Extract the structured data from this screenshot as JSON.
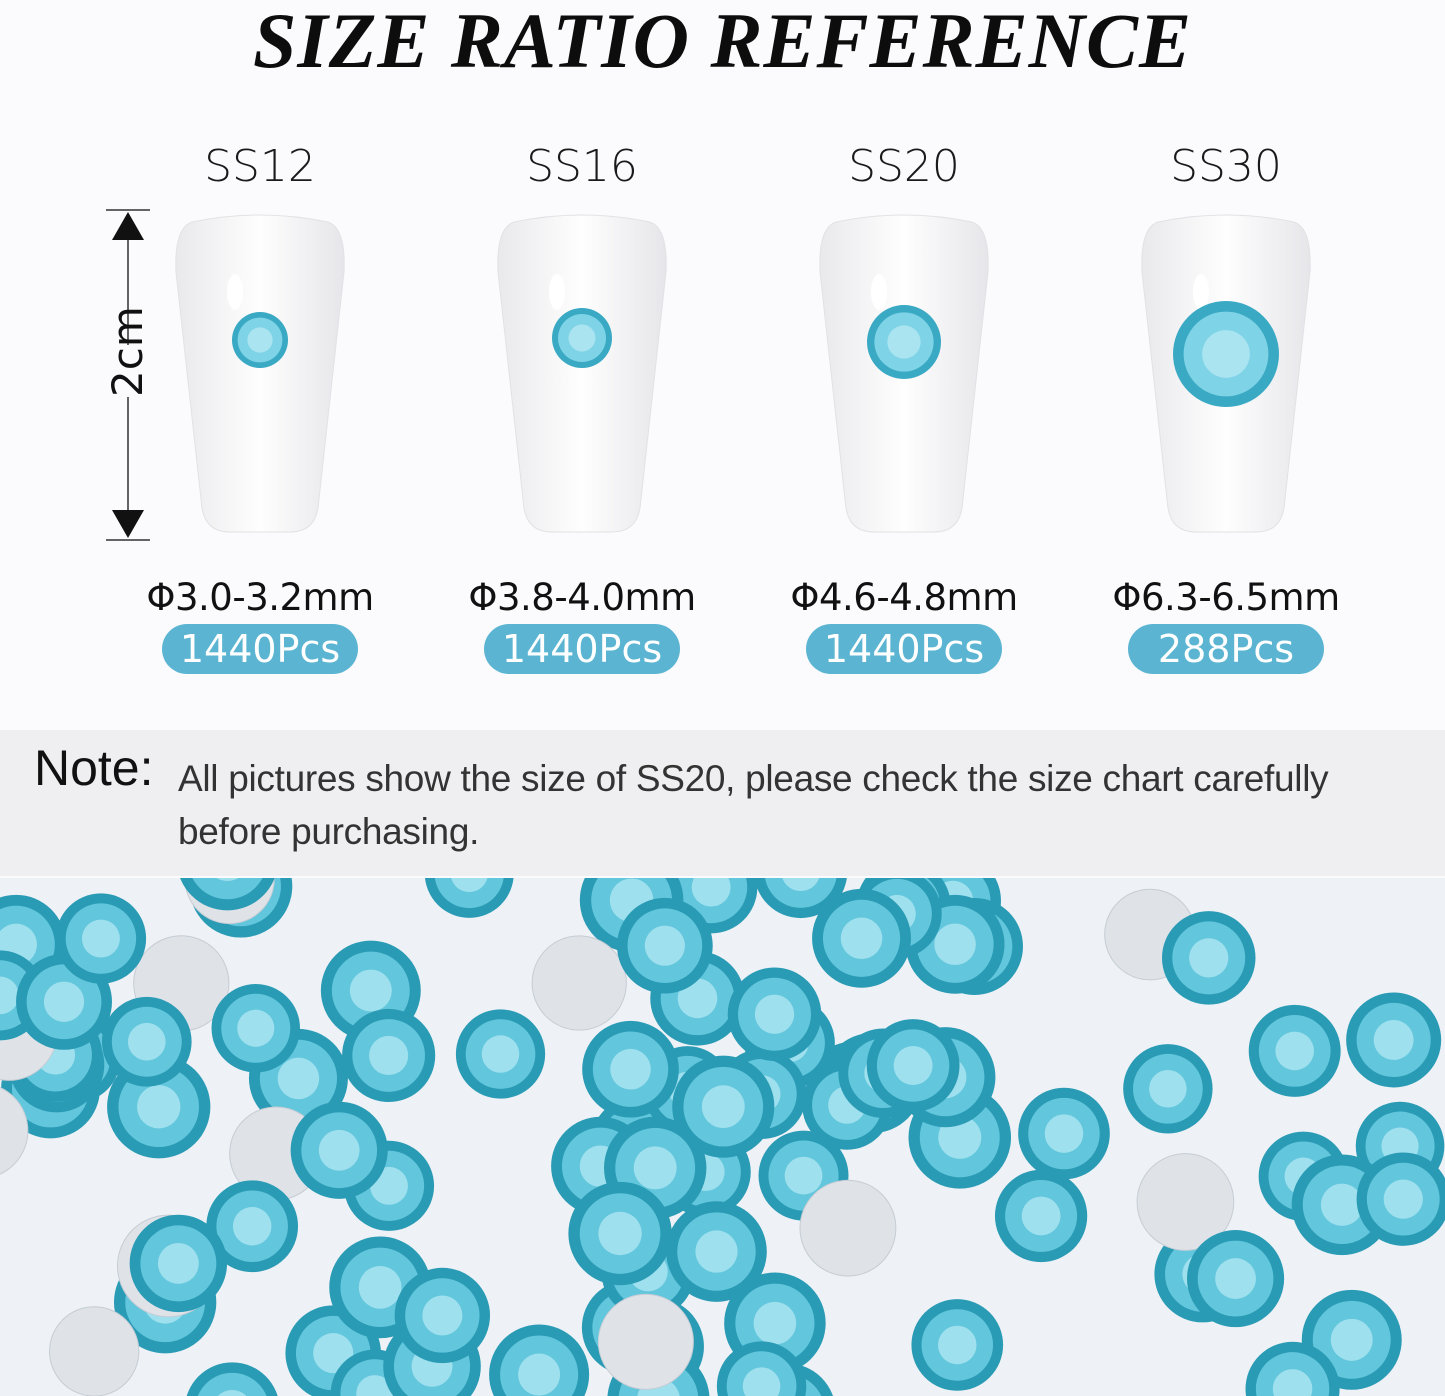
{
  "title": "SIZE RATIO REFERENCE",
  "height_reference": "2cm",
  "accent_color": "#5bb5d2",
  "gem_color": "#3fb3cc",
  "sizes": [
    {
      "name": "SS12",
      "diameter": "Φ3.0-3.2mm",
      "quantity": "1440Pcs"
    },
    {
      "name": "SS16",
      "diameter": "Φ3.8-4.0mm",
      "quantity": "1440Pcs"
    },
    {
      "name": "SS20",
      "diameter": "Φ4.6-4.8mm",
      "quantity": "1440Pcs"
    },
    {
      "name": "SS30",
      "diameter": "Φ6.3-6.5mm",
      "quantity": "288Pcs"
    }
  ],
  "note": {
    "label": "Note:",
    "text": "All pictures show the size of SS20, please check the size chart carefully before purchasing."
  }
}
